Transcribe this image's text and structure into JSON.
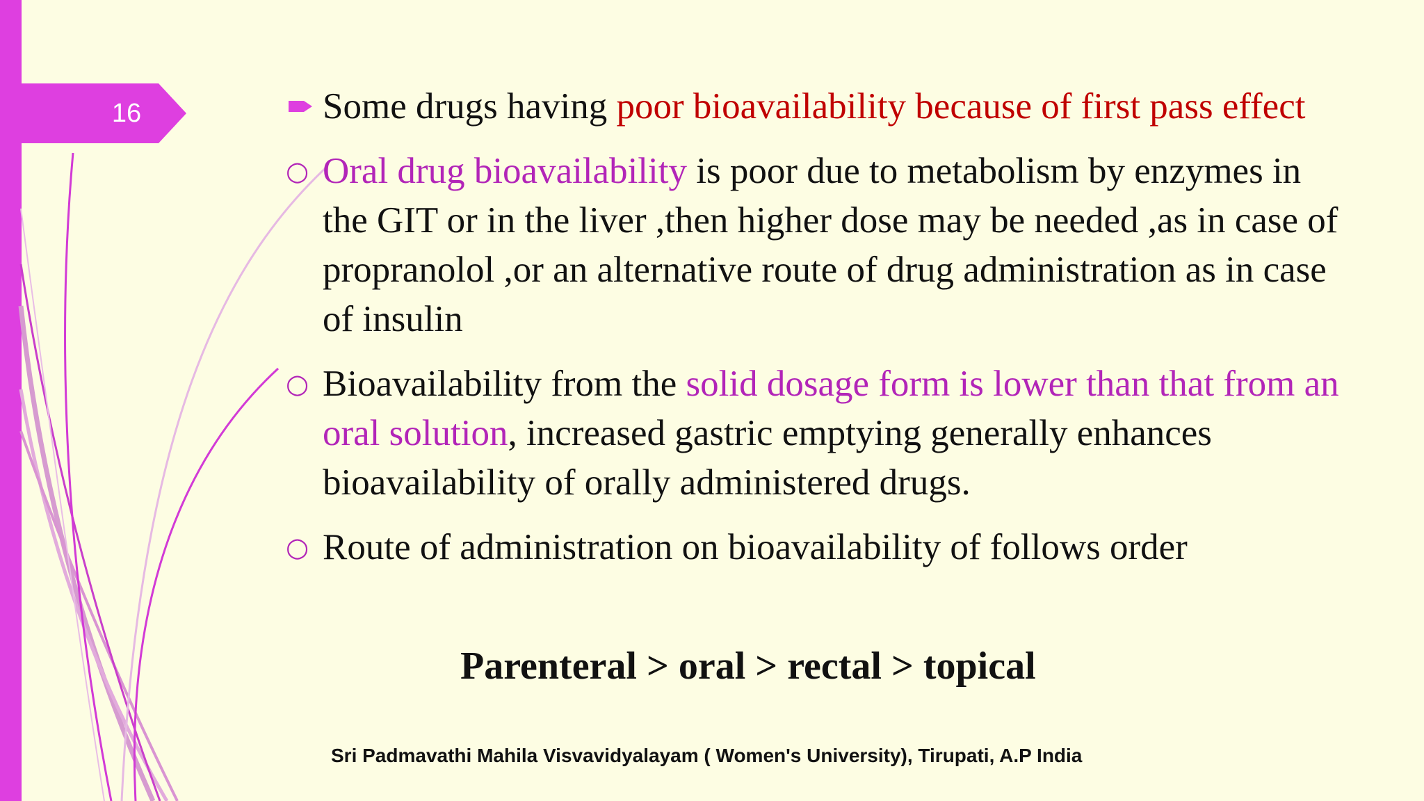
{
  "slide": {
    "number": "16",
    "accent_color": "#DE3FE0",
    "background_color": "#FDFDE3"
  },
  "bullets": [
    {
      "icon": "arrow-bullet-icon",
      "parts": [
        {
          "text": "Some drugs having ",
          "color": "#111111"
        },
        {
          "text": "poor bioavailability because of first pass effect",
          "color": "#C00000"
        }
      ]
    },
    {
      "icon": "circle-bullet-icon",
      "parts": [
        {
          "text": "Oral drug bioavailability",
          "color": "#B225B8"
        },
        {
          "text": " is poor due to metabolism by enzymes in the GIT or in the liver ,then higher dose may be needed ,as in case of propranolol ,or an alternative route of drug administration as in case of insulin",
          "color": "#111111"
        }
      ]
    },
    {
      "icon": "circle-bullet-icon",
      "parts": [
        {
          "text": "Bioavailability from the ",
          "color": "#111111"
        },
        {
          "text": "solid dosage form is lower than that from an oral solution",
          "color": "#B225B8"
        },
        {
          "text": ", increased gastric emptying generally enhances bioavailability of orally administered drugs.",
          "color": "#111111"
        }
      ]
    },
    {
      "icon": "circle-bullet-icon",
      "parts": [
        {
          "text": "Route of administration on bioavailability of follows order",
          "color": "#111111"
        }
      ]
    }
  ],
  "order_line": "Parenteral > oral > rectal > topical",
  "footer": "Sri Padmavathi Mahila Visvavidyalayam ( Women's University), Tirupati, A.P India"
}
